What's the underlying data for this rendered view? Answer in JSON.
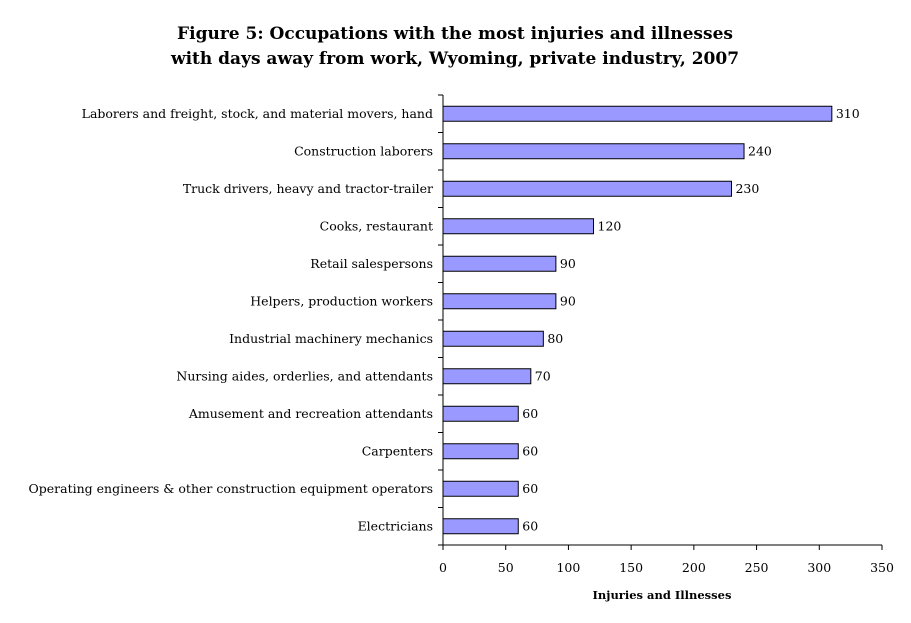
{
  "chart_data": {
    "type": "bar",
    "orientation": "horizontal",
    "title_lines": [
      "Figure 5:  Occupations with the most injuries and illnesses",
      "with days away from work, Wyoming, private industry, 2007"
    ],
    "xlabel": "Injuries and Illnesses",
    "ylabel": "",
    "xlim": [
      0,
      350
    ],
    "x_ticks": [
      0,
      50,
      100,
      150,
      200,
      250,
      300,
      350
    ],
    "grid": false,
    "legend": "none",
    "bar_color": "#9999ff",
    "categories": [
      "Laborers and freight, stock, and material movers, hand",
      "Construction laborers",
      "Truck drivers, heavy and tractor-trailer",
      "Cooks, restaurant",
      "Retail salespersons",
      "Helpers, production workers",
      "Industrial machinery mechanics",
      "Nursing aides, orderlies, and attendants",
      "Amusement and recreation attendants",
      "Carpenters",
      "Operating engineers & other construction equipment operators",
      "Electricians"
    ],
    "values": [
      310,
      240,
      230,
      120,
      90,
      90,
      80,
      70,
      60,
      60,
      60,
      60
    ]
  }
}
